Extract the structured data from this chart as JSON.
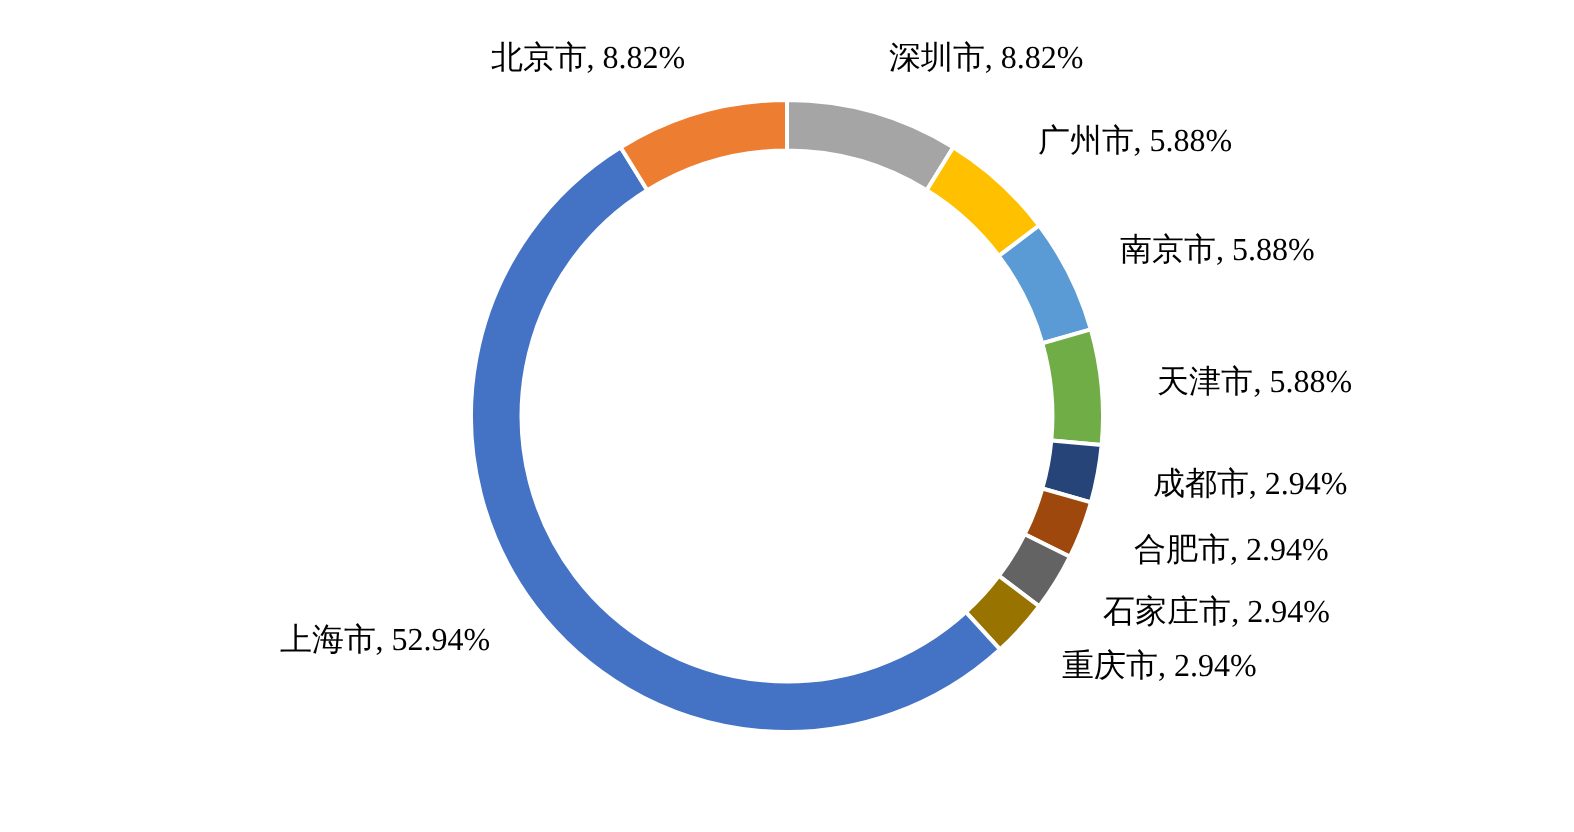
{
  "chart_data": {
    "type": "donut",
    "categories": [
      "深圳市",
      "广州市",
      "南京市",
      "天津市",
      "成都市",
      "合肥市",
      "石家庄市",
      "重庆市",
      "上海市",
      "北京市"
    ],
    "values": [
      8.82,
      5.88,
      5.88,
      5.88,
      2.94,
      2.94,
      2.94,
      2.94,
      52.94,
      8.82
    ],
    "value_labels": [
      "8.82%",
      "5.88%",
      "5.88%",
      "5.88%",
      "2.94%",
      "2.94%",
      "2.94%",
      "2.94%",
      "52.94%",
      "8.82%"
    ],
    "colors": [
      "#a5a5a5",
      "#ffc000",
      "#5b9bd5",
      "#70ad47",
      "#264478",
      "#9e480e",
      "#636363",
      "#997300",
      "#4472c4",
      "#ed7d31"
    ],
    "legend": false
  }
}
